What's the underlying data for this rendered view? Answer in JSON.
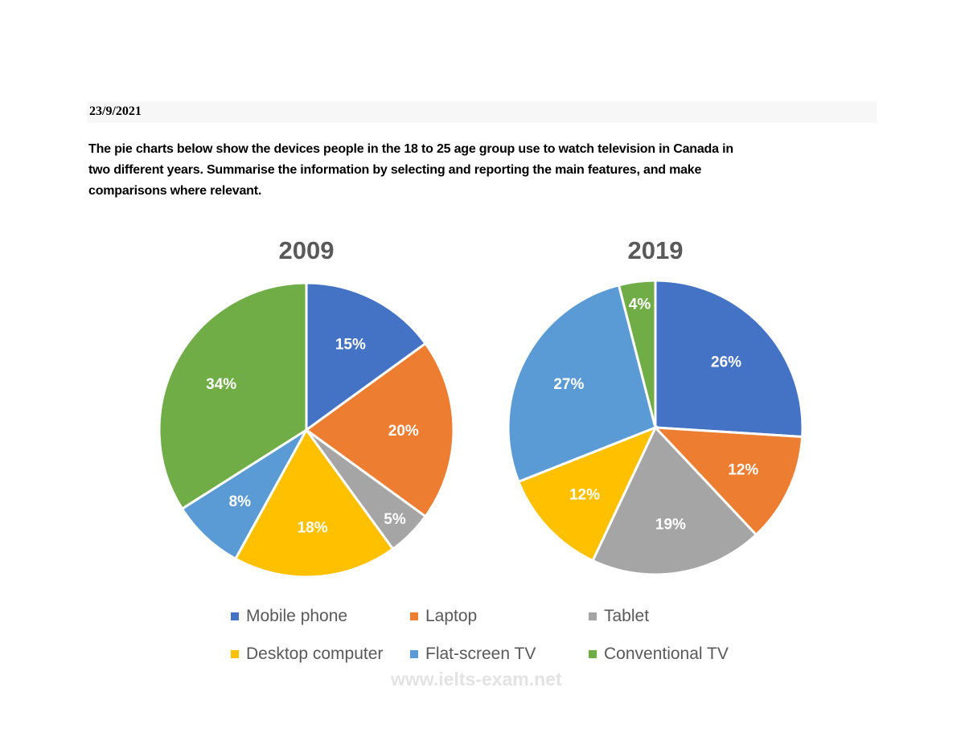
{
  "header": {
    "date": "23/9/2021",
    "prompt_lines": [
      "The pie charts below show the devices people in the 18 to 25 age group use to watch television in Canada in",
      "two different years. Summarise the information by selecting and reporting the main features, and make",
      "comparisons where relevant."
    ]
  },
  "chart_data": [
    {
      "type": "pie",
      "title": "2009",
      "categories": [
        "Mobile phone",
        "Laptop",
        "Tablet",
        "Desktop computer",
        "Flat-screen TV",
        "Conventional TV"
      ],
      "values": [
        15,
        20,
        5,
        18,
        8,
        34
      ],
      "labels": [
        "15%",
        "20%",
        "5%",
        "18%",
        "8%",
        "34%"
      ]
    },
    {
      "type": "pie",
      "title": "2019",
      "categories": [
        "Mobile phone",
        "Laptop",
        "Tablet",
        "Desktop computer",
        "Flat-screen TV",
        "Conventional TV"
      ],
      "values": [
        26,
        12,
        19,
        12,
        27,
        4
      ],
      "labels": [
        "26%",
        "12%",
        "19%",
        "12%",
        "27%",
        "4%"
      ]
    }
  ],
  "legend": [
    {
      "label": "Mobile phone",
      "color": "#4472c4"
    },
    {
      "label": "Laptop",
      "color": "#ed7d31"
    },
    {
      "label": "Tablet",
      "color": "#a5a5a5"
    },
    {
      "label": "Desktop computer",
      "color": "#ffc000"
    },
    {
      "label": "Flat-screen TV",
      "color": "#5b9bd5"
    },
    {
      "label": "Conventional TV",
      "color": "#70ad47"
    }
  ],
  "watermark": "www.ielts-exam.net"
}
